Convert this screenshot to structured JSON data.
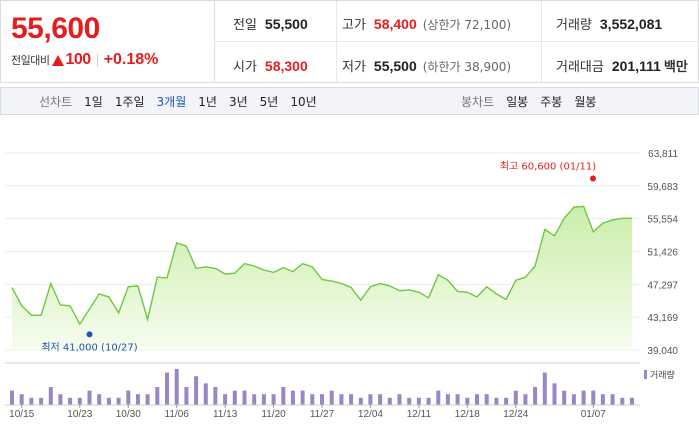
{
  "quote": {
    "price": "55,600",
    "change_label": "전일대비",
    "change_direction": "up",
    "change_value": "100",
    "change_percent": "+0.18%",
    "up_color": "#e41e1e",
    "stats": {
      "prev_close": {
        "label": "전일",
        "value": "55,500"
      },
      "open": {
        "label": "시가",
        "value": "58,300"
      },
      "high": {
        "label": "고가",
        "value": "58,400",
        "sub": "(상한가 72,100)"
      },
      "low": {
        "label": "저가",
        "value": "55,500",
        "sub": "(하한가 38,900)"
      },
      "volume": {
        "label": "거래량",
        "value": "3,552,081"
      },
      "turnover": {
        "label": "거래대금",
        "value": "201,111",
        "unit": "백만"
      }
    }
  },
  "tabs": {
    "line_label": "선차트",
    "line_periods": [
      "1일",
      "1주일",
      "3개월",
      "1년",
      "3년",
      "5년",
      "10년"
    ],
    "active_period": "3개월",
    "candle_label": "봉차트",
    "candle_periods": [
      "일봉",
      "주봉",
      "월봉"
    ]
  },
  "chart_data": {
    "type": "area",
    "period": "3개월",
    "y_ticks": [
      "63,811",
      "59,683",
      "55,554",
      "51,426",
      "47,297",
      "43,169",
      "39,040"
    ],
    "ylim": [
      39040,
      63811
    ],
    "x_ticks": [
      "10/15",
      "10/23",
      "10/30",
      "11/06",
      "11/13",
      "11/20",
      "11/27",
      "12/04",
      "12/11",
      "12/18",
      "12/24",
      "01/07"
    ],
    "x_tick_index": [
      1,
      7,
      12,
      17,
      22,
      27,
      32,
      37,
      42,
      47,
      52,
      60
    ],
    "prices": [
      46900,
      44600,
      43400,
      43400,
      47400,
      44700,
      44600,
      42300,
      44200,
      46100,
      45700,
      43700,
      47000,
      47100,
      42900,
      48200,
      48100,
      52500,
      52100,
      49300,
      49500,
      49300,
      48600,
      48700,
      49900,
      49600,
      49100,
      48800,
      49400,
      48900,
      49900,
      49500,
      47900,
      47700,
      47400,
      46900,
      45300,
      47000,
      47400,
      47100,
      46500,
      46600,
      46300,
      45600,
      48500,
      47800,
      46400,
      46300,
      45700,
      47000,
      46100,
      45400,
      47800,
      48200,
      49600,
      54200,
      53400,
      55600,
      57000,
      57100,
      53900,
      55000,
      55400,
      55600,
      55600
    ],
    "volumes": [
      4,
      3,
      2,
      2,
      5,
      3,
      2,
      2,
      4,
      3,
      2,
      2,
      4,
      3,
      3,
      5,
      9,
      10,
      5,
      8,
      6,
      5,
      3,
      4,
      4,
      3,
      3,
      3,
      5,
      4,
      4,
      3,
      3,
      4,
      3,
      3,
      2,
      3,
      3,
      2,
      3,
      2,
      2,
      2,
      4,
      3,
      3,
      2,
      3,
      3,
      2,
      2,
      4,
      3,
      5,
      9,
      6,
      4,
      3,
      4,
      4,
      3,
      3,
      2,
      2
    ],
    "high": {
      "label": "최고 60,600 (01/11)",
      "value": 60600,
      "date": "01/11"
    },
    "low": {
      "label": "최저 41,000 (10/27)",
      "value": 41000,
      "date": "10/27"
    },
    "volume_legend": "거래량",
    "line_color": "#6bc93f",
    "volume_color": "#9a86c5",
    "high_color": "#e41e1e",
    "low_color": "#2253b3"
  }
}
